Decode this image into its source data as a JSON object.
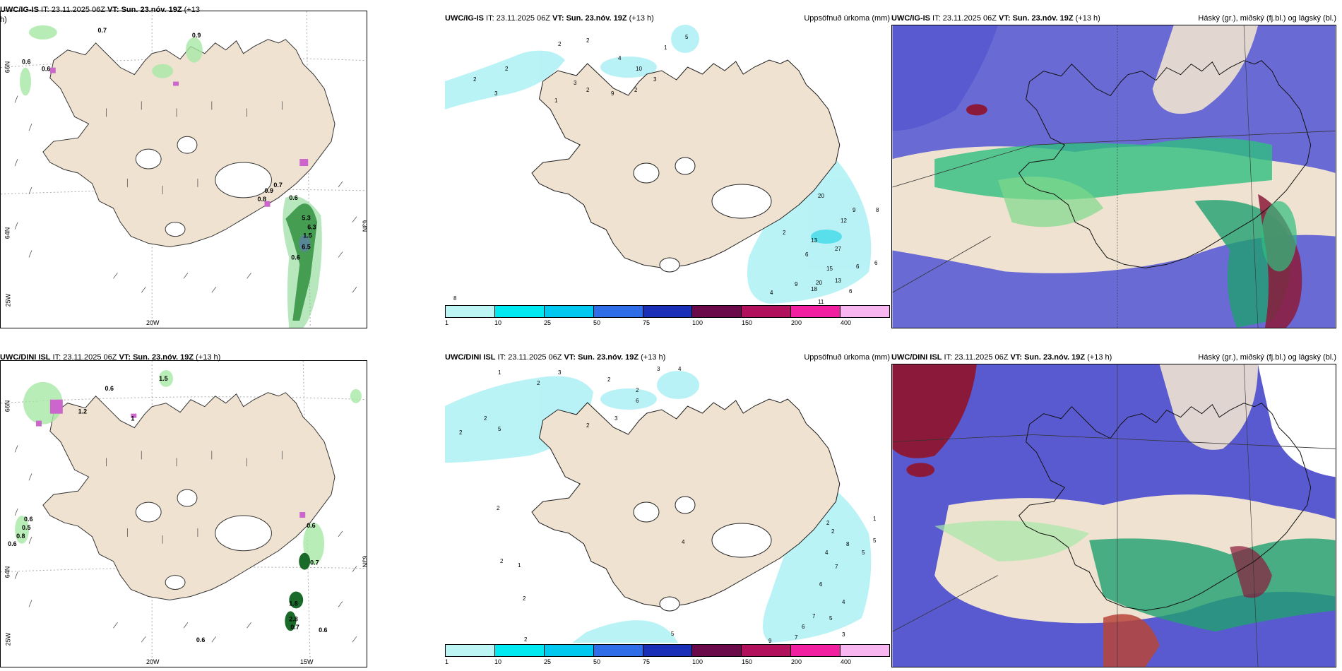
{
  "colors": {
    "land": "#efe2d0",
    "precip_legend": [
      "#bdf5f5",
      "#00e8f0",
      "#00c8ef",
      "#2f6ce8",
      "#1a2fb8",
      "#6a0a4a",
      "#b0105c",
      "#f020a0",
      "#f7b6f0"
    ]
  },
  "panels": [
    {
      "id": "top-left",
      "title_prefix": "UWC/IG-IS",
      "it_text": " IT: 23.11.2025 06Z ",
      "vt_bold": "VT: Sun. 23.nóv. 19Z",
      "lead": " (+13",
      "lead_wrap": "h)",
      "right_title": "",
      "values": [
        "0.7",
        "0.9",
        "0.6",
        "0.6",
        "0.7",
        "0.9",
        "0.8",
        "0.6",
        "5.3",
        "6.3",
        "1.5",
        "6.5",
        "0.6"
      ],
      "axis_labels": [
        "66N",
        "64N",
        "63N",
        "20W",
        "25W"
      ]
    },
    {
      "id": "top-middle",
      "title_prefix": "UWC/IG-IS",
      "it_text": " IT: 23.11.2025 06Z ",
      "vt_bold": "VT: Sun. 23.nóv. 19Z",
      "lead": " (+13 h)",
      "right_title": "Uppsöfnuð úrkoma (mm)",
      "values": [
        "2",
        "5",
        "2",
        "2",
        "4",
        "1",
        "10",
        "2",
        "3",
        "9",
        "2",
        "3",
        "3",
        "2",
        "1",
        "27",
        "13",
        "12",
        "9",
        "8",
        "15",
        "20",
        "13",
        "18",
        "6",
        "6",
        "4",
        "9",
        "6",
        "6",
        "2",
        "20",
        "11",
        "8"
      ],
      "legend_ticks": [
        "1",
        "10",
        "25",
        "50",
        "75",
        "100",
        "150",
        "200",
        "400"
      ]
    },
    {
      "id": "top-right",
      "title_prefix": "UWC/IG-IS",
      "it_text": " IT: 23.11.2025 06Z ",
      "vt_bold": "VT: Sun. 23.nóv. 19Z",
      "lead": " (+13 h)",
      "right_title": "Háský (gr.), miðský (fj.bl.) og lágský (bl.)"
    },
    {
      "id": "bottom-left",
      "title_prefix": "UWC/DINI ISL",
      "it_text": " IT: 23.11.2025 06Z ",
      "vt_bold": "VT: Sun. 23.nóv. 19Z",
      "lead": " (+13 h)",
      "right_title": "",
      "values": [
        "1.5",
        "0.6",
        "1.2",
        "1",
        "0.6",
        "0.5",
        "0.8",
        "0.6",
        "0.6",
        "0.7",
        "1.8",
        "2.8",
        "0.7",
        "0.6",
        "0.6"
      ],
      "axis_labels": [
        "66N",
        "64N",
        "63N",
        "20W",
        "15W",
        "25W"
      ]
    },
    {
      "id": "bottom-middle",
      "title_prefix": "UWC/DINI ISL",
      "it_text": " IT: 23.11.2025 06Z ",
      "vt_bold": "VT: Sun. 23.nóv. 19Z",
      "lead": " (+13 h)",
      "right_title": "Uppsöfnuð úrkoma (mm)",
      "values": [
        "1",
        "2",
        "3",
        "2",
        "3",
        "4",
        "2",
        "6",
        "2",
        "5",
        "2",
        "2",
        "3",
        "4",
        "2",
        "1",
        "2",
        "4",
        "5",
        "8",
        "7",
        "5",
        "6",
        "7",
        "4",
        "5",
        "6",
        "7",
        "3",
        "9",
        "2",
        "2",
        "1",
        "2",
        "2",
        "5"
      ],
      "legend_ticks": [
        "1",
        "10",
        "25",
        "50",
        "75",
        "100",
        "150",
        "200",
        "400"
      ]
    },
    {
      "id": "bottom-right",
      "title_prefix": "UWC/DINI ISL",
      "it_text": " IT: 23.11.2025 06Z ",
      "vt_bold": "VT: Sun. 23.nóv. 19Z",
      "lead": " (+13 h)",
      "right_title": "Háský (gr.), miðský (fj.bl.) og lágský (bl.)"
    }
  ]
}
